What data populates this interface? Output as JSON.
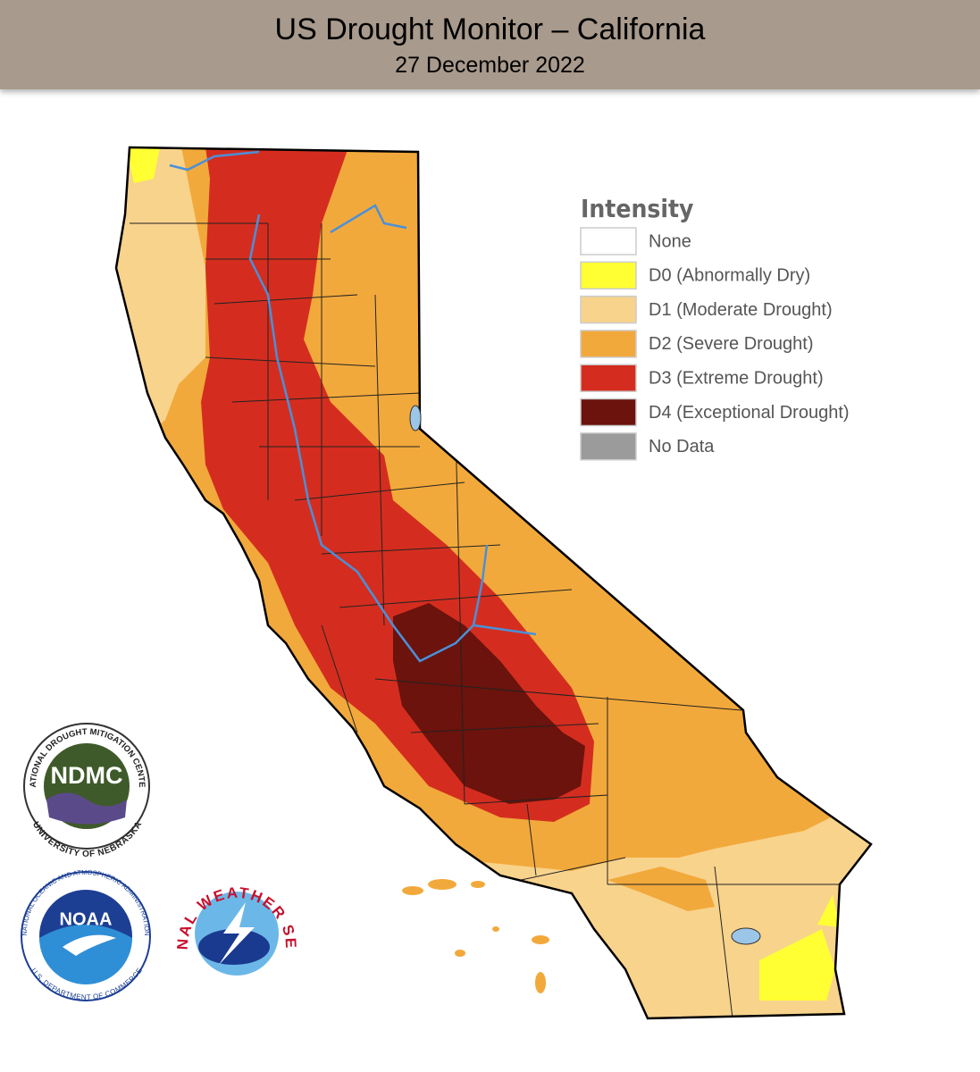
{
  "header": {
    "title": "US Drought Monitor – California",
    "subtitle": "27 December 2022"
  },
  "legend": {
    "title": "Intensity",
    "items": [
      {
        "label": "None",
        "color": "#ffffff"
      },
      {
        "label": "D0 (Abnormally Dry)",
        "color": "#ffff33"
      },
      {
        "label": "D1 (Moderate Drought)",
        "color": "#f8d38c"
      },
      {
        "label": "D2 (Severe Drought)",
        "color": "#f2a93b"
      },
      {
        "label": "D3 (Extreme Drought)",
        "color": "#d42d1f"
      },
      {
        "label": "D4 (Exceptional Drought)",
        "color": "#6b130c"
      },
      {
        "label": "No Data",
        "color": "#9b9b9b"
      }
    ]
  },
  "logos": {
    "ndmc": {
      "acronym": "NDMC",
      "top": "NATIONAL DROUGHT MITIGATION CENTER",
      "bottom": "UNIVERSITY OF NEBRASKA"
    },
    "noaa": {
      "acronym": "NOAA",
      "top": "NATIONAL OCEANIC AND ATMOSPHERIC ADMINISTRATION",
      "bottom": "U.S. DEPARTMENT OF COMMERCE"
    },
    "nws": {
      "ring": "NATIONAL WEATHER SERVICE"
    }
  }
}
